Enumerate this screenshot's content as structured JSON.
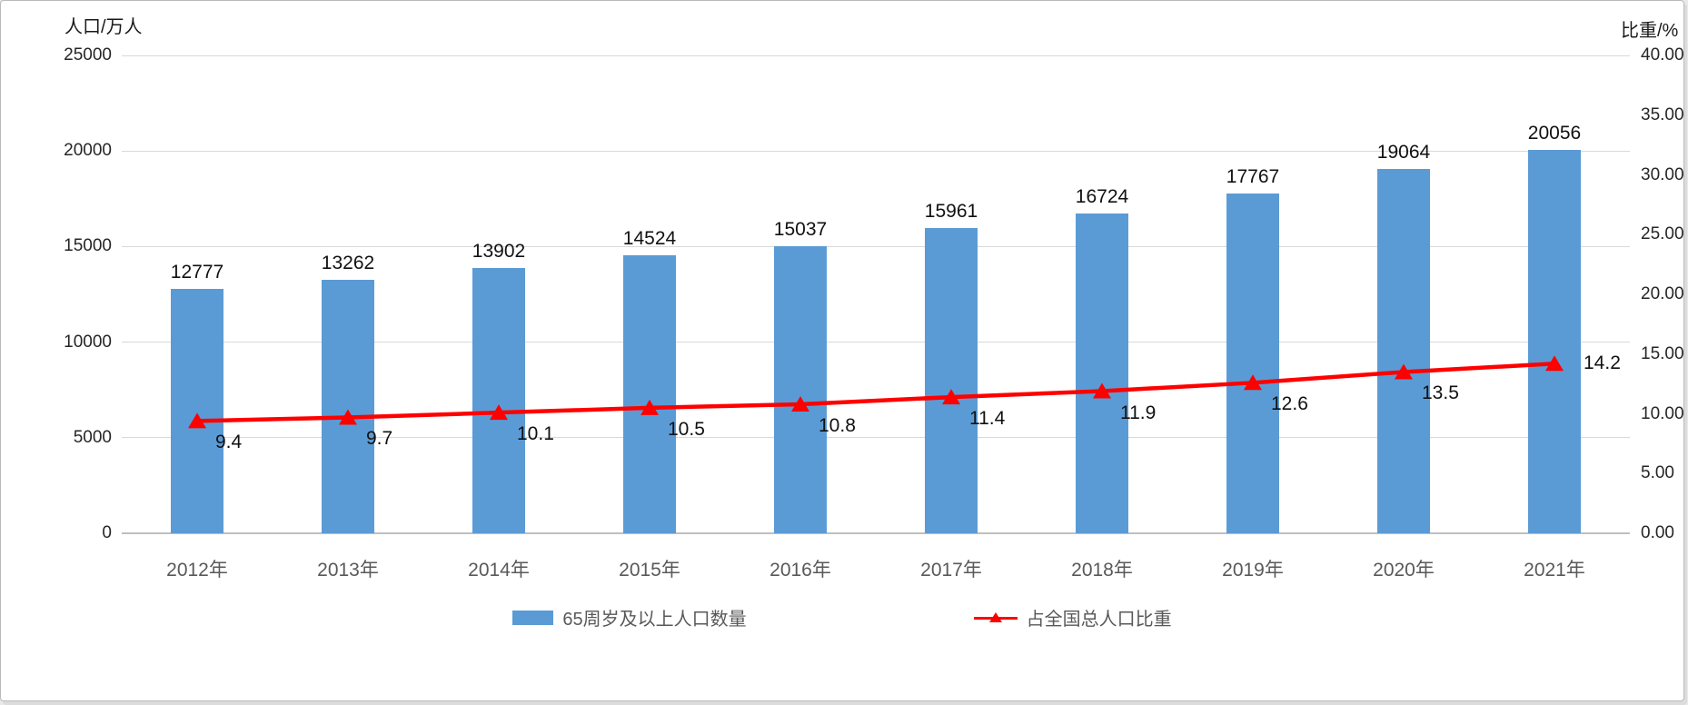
{
  "chart_data": {
    "type": "bar",
    "subtype": "combo-bar-line",
    "title": "",
    "categories": [
      "2012年",
      "2013年",
      "2014年",
      "2015年",
      "2016年",
      "2017年",
      "2018年",
      "2019年",
      "2020年",
      "2021年"
    ],
    "series": [
      {
        "name": "65周岁及以上人口数量",
        "type": "bar",
        "axis": "left",
        "values": [
          12777,
          13262,
          13902,
          14524,
          15037,
          15961,
          16724,
          17767,
          19064,
          20056
        ],
        "data_labels": [
          "12777",
          "13262",
          "13902",
          "14524",
          "15037",
          "15961",
          "16724",
          "17767",
          "19064",
          "20056"
        ],
        "color": "#5B9BD5"
      },
      {
        "name": "占全国总人口比重",
        "type": "line",
        "axis": "right",
        "marker": "triangle",
        "values": [
          9.4,
          9.7,
          10.1,
          10.5,
          10.8,
          11.4,
          11.9,
          12.6,
          13.5,
          14.2
        ],
        "data_labels": [
          "9.4",
          "9.7",
          "10.1",
          "10.5",
          "10.8",
          "11.4",
          "11.9",
          "12.6",
          "13.5",
          "14.2"
        ],
        "color": "#FF0000"
      }
    ],
    "left_axis": {
      "title": "人口/万人",
      "min": 0,
      "max": 25000,
      "tick_step": 5000,
      "tick_labels": [
        "0",
        "5000",
        "10000",
        "15000",
        "20000",
        "25000"
      ]
    },
    "right_axis": {
      "title": "比重/%",
      "min": 0,
      "max": 40,
      "tick_step": 5,
      "tick_labels": [
        "0.00",
        "5.00",
        "10.00",
        "15.00",
        "20.00",
        "25.00",
        "30.00",
        "35.00",
        "40.00"
      ]
    },
    "grid": "horizontal-left-axis",
    "legend_position": "bottom"
  },
  "colors": {
    "bar": "#5B9BD5",
    "line": "#FF0000",
    "gridline": "#D9D9D9",
    "axis_line": "#BFBFBF",
    "tick_text": "#262626",
    "category_text": "#595959",
    "legend_text": "#595959",
    "data_label_text": "#111111"
  },
  "legend": {
    "items": [
      {
        "label": "65周岁及以上人口数量",
        "swatch": "bar-square"
      },
      {
        "label": "占全国总人口比重",
        "swatch": "line-triangle"
      }
    ]
  }
}
